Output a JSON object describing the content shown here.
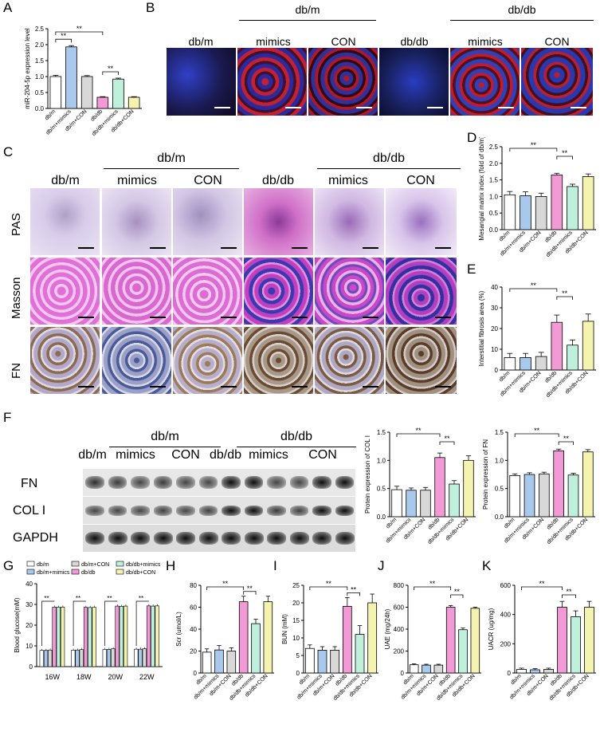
{
  "panel_letters": [
    "A",
    "B",
    "C",
    "D",
    "E",
    "F",
    "G",
    "H",
    "I",
    "J",
    "K"
  ],
  "colors": {
    "white_bar": "#ffffff",
    "blue_bar": "#a8c8ec",
    "grey_bar": "#d8d8d8",
    "pink_bar": "#f29ad6",
    "green_bar": "#bff0dc",
    "yellow_bar": "#f4f4b0",
    "if_red": "#c41a2a",
    "if_blue": "#2a40d0",
    "pas": "#c8a8d8",
    "masson": "#d86ad0",
    "fn_ihc": "#a89080"
  },
  "panelB": {
    "group_db_m": "db/m",
    "group_db_db": "db/db",
    "cols": [
      "db/m",
      "mimics",
      "CON",
      "db/db",
      "mimics",
      "CON"
    ]
  },
  "panelC": {
    "group_db_m": "db/m",
    "group_db_db": "db/db",
    "cols": [
      "db/m",
      "mimics",
      "CON",
      "db/db",
      "mimics",
      "CON"
    ],
    "rows": [
      "PAS",
      "Masson",
      "FN"
    ]
  },
  "panelF": {
    "group_db_m": "db/m",
    "group_db_db": "db/db",
    "cols": [
      "db/m",
      "mimics",
      "CON",
      "db/db",
      "mimics",
      "CON"
    ],
    "rows": [
      "FN",
      "COL I",
      "GAPDH"
    ]
  },
  "chart_data": [
    {
      "id": "A",
      "type": "bar",
      "categories": [
        "db/m",
        "db/m+mimics",
        "db/m+CON",
        "db/db",
        "db/db+mimics",
        "db/db+CON"
      ],
      "values": [
        1.0,
        1.93,
        1.0,
        0.35,
        0.92,
        0.35
      ],
      "errors": [
        0.04,
        0.04,
        0.03,
        0.02,
        0.03,
        0.02
      ],
      "ylabel": "miR-204-5p expression level",
      "ylim": [
        0,
        2.5
      ],
      "yticks": [
        "0.0",
        "0.5",
        "1.0",
        "1.5",
        "2.0",
        "2.5"
      ],
      "tickvals": [
        0,
        0.5,
        1.0,
        1.5,
        2.0,
        2.5
      ],
      "sig": [
        {
          "from": 0,
          "to": 1,
          "level": 1,
          "label": "**"
        },
        {
          "from": 0,
          "to": 3,
          "level": 2,
          "label": "**"
        },
        {
          "from": 3,
          "to": 4,
          "level": 1,
          "label": "**"
        }
      ]
    },
    {
      "id": "D",
      "type": "bar",
      "categories": [
        "db/m",
        "db/m+mimics",
        "db/m+CON",
        "db/db",
        "db/db+mimics",
        "db/db+CON"
      ],
      "values": [
        1.05,
        1.02,
        1.0,
        1.65,
        1.3,
        1.6
      ],
      "errors": [
        0.1,
        0.12,
        0.1,
        0.05,
        0.07,
        0.08
      ],
      "ylabel": "Mesangial matrix index (fold of db/m)",
      "ylim": [
        0,
        2.5
      ],
      "yticks": [
        "0.0",
        "0.5",
        "1.0",
        "1.5",
        "2.0",
        "2.5"
      ],
      "tickvals": [
        0,
        0.5,
        1.0,
        1.5,
        2.0,
        2.5
      ],
      "sig": [
        {
          "from": 0,
          "to": 3,
          "level": 1,
          "label": "**"
        },
        {
          "from": 3,
          "to": 4,
          "level": 2,
          "label": "**"
        }
      ]
    },
    {
      "id": "E",
      "type": "bar",
      "categories": [
        "db/m",
        "db/m+mimics",
        "db/m+CON",
        "db/db",
        "db/db+mimics",
        "db/db+CON"
      ],
      "values": [
        6,
        6,
        6.5,
        23,
        12,
        23.5
      ],
      "errors": [
        2,
        2,
        2,
        3.5,
        2.5,
        3.5
      ],
      "ylabel": "Interstitial fibrosis area (%)",
      "ylim": [
        0,
        40
      ],
      "yticks": [
        "0",
        "10",
        "20",
        "30",
        "40"
      ],
      "tickvals": [
        0,
        10,
        20,
        30,
        40
      ],
      "sig": [
        {
          "from": 0,
          "to": 3,
          "level": 1,
          "label": "**"
        },
        {
          "from": 3,
          "to": 4,
          "level": 2,
          "label": "**"
        }
      ]
    },
    {
      "id": "F1",
      "type": "bar",
      "categories": [
        "db/m",
        "db/m+mimics",
        "db/m+CON",
        "db/db",
        "db/db+mimics",
        "db/db+CON"
      ],
      "values": [
        0.48,
        0.47,
        0.47,
        1.05,
        0.58,
        1.0
      ],
      "errors": [
        0.06,
        0.04,
        0.05,
        0.08,
        0.06,
        0.08
      ],
      "ylabel": "Protein expression of COL I",
      "ylim": [
        0,
        1.5
      ],
      "yticks": [
        "0.0",
        "0.5",
        "1.0",
        "1.5"
      ],
      "tickvals": [
        0,
        0.5,
        1.0,
        1.5
      ],
      "sig": [
        {
          "from": 0,
          "to": 3,
          "level": 1,
          "label": "**"
        },
        {
          "from": 3,
          "to": 4,
          "level": 2,
          "label": "**"
        }
      ]
    },
    {
      "id": "F2",
      "type": "bar",
      "categories": [
        "db/m",
        "db/m+mimics",
        "db/m+CON",
        "db/db",
        "db/db+mimics",
        "db/db+CON"
      ],
      "values": [
        0.73,
        0.75,
        0.76,
        1.17,
        0.74,
        1.15
      ],
      "errors": [
        0.03,
        0.03,
        0.03,
        0.03,
        0.03,
        0.04
      ],
      "ylabel": "Protein expression of FN",
      "ylim": [
        0,
        1.5
      ],
      "yticks": [
        "0.0",
        "0.5",
        "1.0",
        "1.5"
      ],
      "tickvals": [
        0,
        0.5,
        1.0,
        1.5
      ],
      "sig": [
        {
          "from": 0,
          "to": 3,
          "level": 1,
          "label": "**"
        },
        {
          "from": 3,
          "to": 4,
          "level": 2,
          "label": "**"
        }
      ]
    },
    {
      "id": "H",
      "type": "bar",
      "categories": [
        "db/m",
        "db/m+mimics",
        "db/m+CON",
        "db/db",
        "db/db+mimics",
        "db/db+CON"
      ],
      "values": [
        19,
        21,
        20,
        65,
        45,
        65
      ],
      "errors": [
        3,
        4,
        3,
        5,
        4,
        5
      ],
      "ylabel": "Scr (umol/L)",
      "ylim": [
        0,
        80
      ],
      "yticks": [
        "0",
        "20",
        "40",
        "60",
        "80"
      ],
      "tickvals": [
        0,
        20,
        40,
        60,
        80
      ],
      "sig": [
        {
          "from": 0,
          "to": 3,
          "level": 1,
          "label": "**"
        },
        {
          "from": 3,
          "to": 4,
          "level": 2,
          "label": "**"
        }
      ]
    },
    {
      "id": "I",
      "type": "bar",
      "categories": [
        "db/m",
        "db/m+mimics",
        "db/m+CON",
        "db/db",
        "db/db+mimics",
        "db/db+CON"
      ],
      "values": [
        7,
        6.5,
        6.5,
        19,
        11,
        20
      ],
      "errors": [
        1,
        1,
        1,
        2.5,
        2.5,
        2.5
      ],
      "ylabel": "BUN (mM)",
      "ylim": [
        0,
        25
      ],
      "yticks": [
        "0",
        "5",
        "10",
        "15",
        "20",
        "25"
      ],
      "tickvals": [
        0,
        5,
        10,
        15,
        20,
        25
      ],
      "sig": [
        {
          "from": 0,
          "to": 3,
          "level": 1,
          "label": "**"
        },
        {
          "from": 3,
          "to": 4,
          "level": 2,
          "label": "**"
        }
      ]
    },
    {
      "id": "J",
      "type": "bar",
      "categories": [
        "db/m",
        "db/m+mimics",
        "db/m+CON",
        "db/db",
        "db/db+mimics",
        "db/db+CON"
      ],
      "values": [
        75,
        72,
        72,
        600,
        395,
        590
      ],
      "errors": [
        8,
        8,
        8,
        15,
        15,
        10
      ],
      "ylabel": "UAE (mg/24h)",
      "ylim": [
        0,
        800
      ],
      "yticks": [
        "0",
        "200",
        "400",
        "600",
        "800"
      ],
      "tickvals": [
        0,
        200,
        400,
        600,
        800
      ],
      "sig": [
        {
          "from": 0,
          "to": 3,
          "level": 1,
          "label": "**"
        },
        {
          "from": 3,
          "to": 4,
          "level": 2,
          "label": "**"
        }
      ]
    },
    {
      "id": "K",
      "type": "bar",
      "categories": [
        "db/m",
        "db/m+mimics",
        "db/m+CON",
        "db/db",
        "db/db+mimics",
        "db/db+CON"
      ],
      "values": [
        25,
        22,
        25,
        450,
        385,
        450
      ],
      "errors": [
        8,
        8,
        8,
        40,
        40,
        40
      ],
      "ylabel": "UACR (ug/mg)",
      "ylim": [
        0,
        600
      ],
      "yticks": [
        "0",
        "200",
        "400",
        "600"
      ],
      "tickvals": [
        0,
        200,
        400,
        600
      ],
      "sig": [
        {
          "from": 0,
          "to": 3,
          "level": 1,
          "label": "**"
        },
        {
          "from": 3,
          "to": 4,
          "level": 2,
          "label": "**"
        }
      ]
    },
    {
      "id": "G",
      "type": "bar",
      "categories": [
        "16W",
        "18W",
        "20W",
        "22W"
      ],
      "series": [
        {
          "name": "db/m",
          "values": [
            7.8,
            7.9,
            8.3,
            8.4
          ]
        },
        {
          "name": "db/m+mimics",
          "values": [
            7.8,
            8.0,
            8.3,
            8.4
          ]
        },
        {
          "name": "db/m+CON",
          "values": [
            8.0,
            8.2,
            8.6,
            8.6
          ]
        },
        {
          "name": "db/db",
          "values": [
            28.7,
            28.6,
            29.2,
            29.3
          ]
        },
        {
          "name": "db/db+mimics",
          "values": [
            28.6,
            28.5,
            29.1,
            29.2
          ]
        },
        {
          "name": "db/db+CON",
          "values": [
            28.7,
            28.6,
            29.2,
            29.3
          ]
        }
      ],
      "ylabel": "Blood glucose(mM)",
      "ylim": [
        0,
        40
      ],
      "yticks": [
        "0",
        "10",
        "20",
        "30",
        "40"
      ],
      "tickvals": [
        0,
        10,
        20,
        30,
        40
      ],
      "sig_label": "**"
    }
  ]
}
